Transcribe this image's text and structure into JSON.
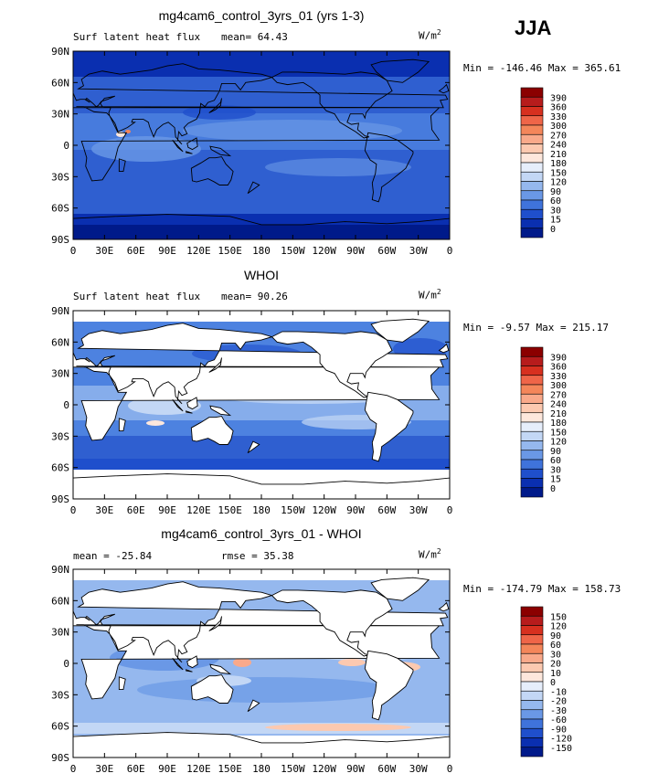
{
  "season": "JJA",
  "chart_data": [
    {
      "type": "heatmap",
      "title": "mg4cam6_control_3yrs_01 (yrs 1-3)",
      "left_label": "Surf latent heat flux",
      "stat_text": "mean=  64.43",
      "units": "W/m",
      "units_sup": "2",
      "minmax": "Min = -146.46 Max = 365.61",
      "y_ticks": [
        "90N",
        "60N",
        "30N",
        "0",
        "30S",
        "60S",
        "90S"
      ],
      "x_ticks": [
        "0",
        "30E",
        "60E",
        "90E",
        "120E",
        "150E",
        "180",
        "150W",
        "120W",
        "90W",
        "60W",
        "30W",
        "0"
      ],
      "colorbar": {
        "labels": [
          "390",
          "360",
          "330",
          "300",
          "270",
          "240",
          "210",
          "180",
          "150",
          "120",
          "90",
          "60",
          "30",
          "15",
          "0"
        ],
        "colors": [
          "#8b0000",
          "#b71c1c",
          "#d7301f",
          "#ef6548",
          "#f4865a",
          "#f9a98a",
          "#fcc9b0",
          "#fde7dc",
          "#e6eefb",
          "#c3d7f5",
          "#95b8ee",
          "#6a98e6",
          "#3f73db",
          "#1f4fcc",
          "#0a2fb0",
          "#001a8a"
        ]
      }
    },
    {
      "type": "heatmap",
      "title": "WHOI",
      "left_label": "Surf latent heat flux",
      "stat_text": "mean=  90.26",
      "units": "W/m",
      "units_sup": "2",
      "minmax": "Min =  -9.57 Max = 215.17",
      "y_ticks": [
        "90N",
        "60N",
        "30N",
        "0",
        "30S",
        "60S",
        "90S"
      ],
      "x_ticks": [
        "0",
        "30E",
        "60E",
        "90E",
        "120E",
        "150E",
        "180",
        "150W",
        "120W",
        "90W",
        "60W",
        "30W",
        "0"
      ],
      "colorbar": {
        "labels": [
          "390",
          "360",
          "330",
          "300",
          "270",
          "240",
          "210",
          "180",
          "150",
          "120",
          "90",
          "60",
          "30",
          "15",
          "0"
        ],
        "colors": [
          "#8b0000",
          "#b71c1c",
          "#d7301f",
          "#ef6548",
          "#f4865a",
          "#f9a98a",
          "#fcc9b0",
          "#fde7dc",
          "#e6eefb",
          "#c3d7f5",
          "#95b8ee",
          "#6a98e6",
          "#3f73db",
          "#1f4fcc",
          "#0a2fb0",
          "#001a8a"
        ]
      }
    },
    {
      "type": "heatmap",
      "title": "mg4cam6_control_3yrs_01 - WHOI",
      "left_label": "mean = -25.84",
      "stat_text": "rmse =  35.38",
      "units": "W/m",
      "units_sup": "2",
      "minmax": "Min = -174.79 Max = 158.73",
      "y_ticks": [
        "90N",
        "60N",
        "30N",
        "0",
        "30S",
        "60S",
        "90S"
      ],
      "x_ticks": [
        "0",
        "30E",
        "60E",
        "90E",
        "120E",
        "150E",
        "180",
        "150W",
        "120W",
        "90W",
        "60W",
        "30W",
        "0"
      ],
      "colorbar": {
        "labels": [
          "150",
          "120",
          "90",
          "60",
          "30",
          "20",
          "10",
          "0",
          "-10",
          "-20",
          "-30",
          "-60",
          "-90",
          "-120",
          "-150"
        ],
        "colors": [
          "#8b0000",
          "#b71c1c",
          "#d7301f",
          "#ef6548",
          "#f4865a",
          "#f9a98a",
          "#fcc9b0",
          "#fde7dc",
          "#e6eefb",
          "#c3d7f5",
          "#95b8ee",
          "#6a98e6",
          "#3f73db",
          "#1f4fcc",
          "#0a2fb0",
          "#001a8a"
        ]
      }
    }
  ]
}
